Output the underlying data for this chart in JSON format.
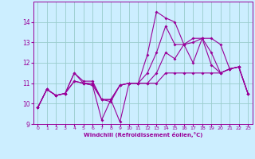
{
  "xlabel": "Windchill (Refroidissement éolien,°C)",
  "bg_color": "#cceeff",
  "line_color": "#990099",
  "grid_color": "#99cccc",
  "xlim": [
    -0.5,
    23.5
  ],
  "ylim": [
    9,
    15
  ],
  "yticks": [
    9,
    10,
    11,
    12,
    13,
    14
  ],
  "xticks": [
    0,
    1,
    2,
    3,
    4,
    5,
    6,
    7,
    8,
    9,
    10,
    11,
    12,
    13,
    14,
    15,
    16,
    17,
    18,
    19,
    20,
    21,
    22,
    23
  ],
  "lines": [
    [
      9.8,
      10.7,
      10.4,
      10.5,
      11.5,
      11.1,
      11.1,
      10.2,
      10.2,
      10.9,
      11.0,
      11.0,
      12.4,
      14.5,
      14.2,
      14.0,
      12.9,
      13.2,
      13.2,
      13.2,
      12.9,
      11.7,
      11.8,
      10.5
    ],
    [
      9.8,
      10.7,
      10.4,
      10.5,
      11.5,
      11.0,
      11.0,
      10.2,
      10.1,
      10.9,
      11.0,
      11.0,
      11.5,
      12.5,
      13.8,
      12.9,
      12.9,
      13.0,
      13.2,
      12.5,
      11.5,
      11.7,
      11.8,
      10.5
    ],
    [
      9.8,
      10.7,
      10.4,
      10.5,
      11.1,
      11.0,
      10.9,
      9.2,
      10.2,
      9.1,
      11.0,
      11.0,
      11.0,
      11.5,
      12.5,
      12.2,
      12.9,
      12.0,
      13.2,
      11.9,
      11.5,
      11.7,
      11.8,
      10.5
    ],
    [
      9.8,
      10.7,
      10.4,
      10.5,
      11.1,
      11.0,
      10.9,
      10.2,
      10.2,
      10.9,
      11.0,
      11.0,
      11.0,
      11.0,
      11.5,
      11.5,
      11.5,
      11.5,
      11.5,
      11.5,
      11.5,
      11.7,
      11.8,
      10.5
    ]
  ]
}
